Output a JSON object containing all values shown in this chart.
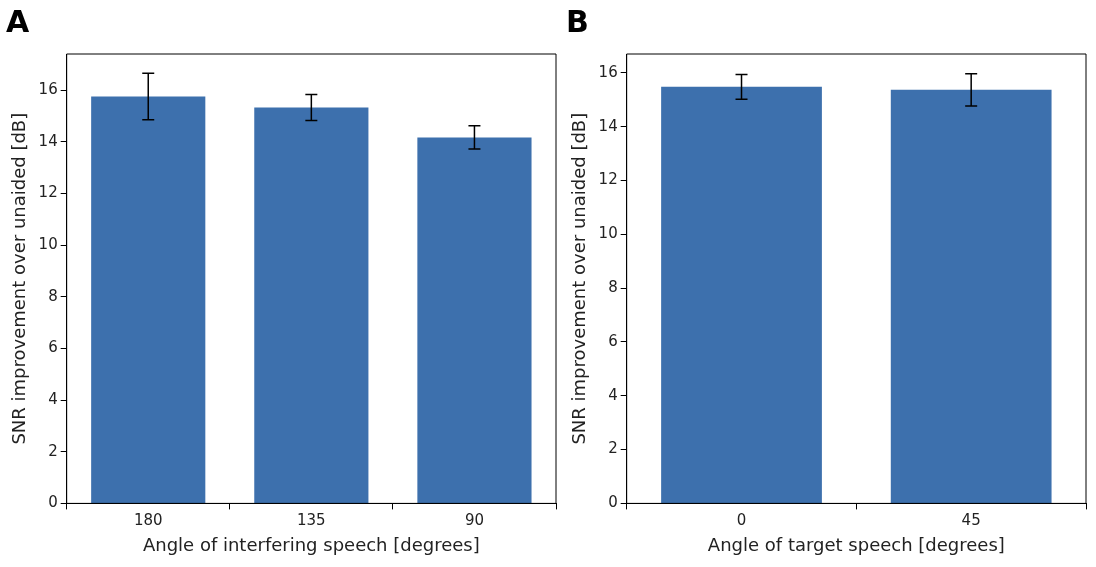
{
  "chart_data": [
    {
      "type": "bar",
      "title": "A",
      "xlabel": "Angle of interfering speech [degrees]",
      "ylabel": "SNR improvement over unaided [dB]",
      "categories": [
        "180",
        "135",
        "90"
      ],
      "values": [
        15.75,
        15.33,
        14.17
      ],
      "errors": [
        0.9,
        0.5,
        0.45
      ],
      "color": "#3d70ad",
      "ylim": [
        0,
        17.4
      ],
      "yticks": [
        0,
        2,
        4,
        6,
        8,
        10,
        12,
        14,
        16
      ]
    },
    {
      "type": "bar",
      "title": "B",
      "xlabel": "Angle of target speech [degrees]",
      "ylabel": "SNR improvement over unaided [dB]",
      "categories": [
        "0",
        "45"
      ],
      "values": [
        15.48,
        15.37
      ],
      "errors": [
        0.46,
        0.6
      ],
      "color": "#3d70ad",
      "ylim": [
        0,
        16.7
      ],
      "yticks": [
        0,
        2,
        4,
        6,
        8,
        10,
        12,
        14,
        16
      ]
    }
  ]
}
